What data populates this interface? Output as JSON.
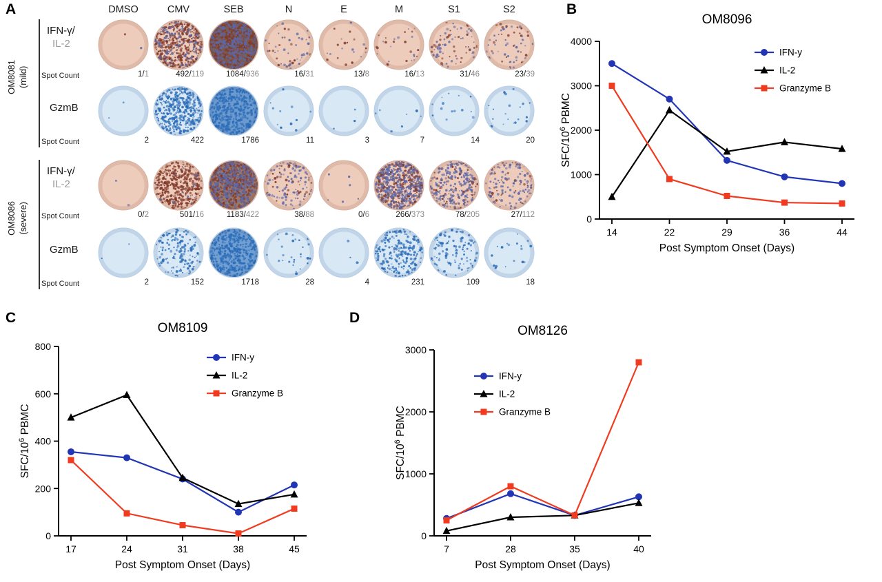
{
  "panelA": {
    "label": "A",
    "columns": [
      "DMSO",
      "CMV",
      "SEB",
      "N",
      "E",
      "M",
      "S1",
      "S2"
    ],
    "spot_count_label": "Spot Count",
    "groups": [
      {
        "patient": "OM8081",
        "severity": "(mild)",
        "rows": [
          {
            "type": "dual",
            "label1": "IFN-γ/",
            "label2": "IL-2",
            "well": "pink",
            "counts": [
              [
                "1",
                "1"
              ],
              [
                "492",
                "119"
              ],
              [
                "1084",
                "936"
              ],
              [
                "16",
                "31"
              ],
              [
                "13",
                "8"
              ],
              [
                "16",
                "13"
              ],
              [
                "31",
                "46"
              ],
              [
                "23",
                "39"
              ]
            ]
          },
          {
            "type": "single",
            "label1": "GzmB",
            "well": "blue",
            "counts": [
              "2",
              "422",
              "1786",
              "11",
              "3",
              "7",
              "14",
              "20"
            ]
          }
        ]
      },
      {
        "patient": "OM8086",
        "severity": "(severe)",
        "rows": [
          {
            "type": "dual",
            "label1": "IFN-γ/",
            "label2": "IL-2",
            "well": "pink",
            "counts": [
              [
                "0",
                "2"
              ],
              [
                "501",
                "16"
              ],
              [
                "1183",
                "422"
              ],
              [
                "38",
                "88"
              ],
              [
                "0",
                "6"
              ],
              [
                "266",
                "373"
              ],
              [
                "78",
                "205"
              ],
              [
                "27",
                "112"
              ]
            ]
          },
          {
            "type": "single",
            "label1": "GzmB",
            "well": "blue",
            "counts": [
              "2",
              "152",
              "1718",
              "28",
              "4",
              "231",
              "109",
              "18"
            ]
          }
        ]
      }
    ],
    "well_colors": {
      "pink_base": "#eeccbc",
      "pink_spot_primary": "#81392a",
      "pink_spot_secondary": "#5b68a8",
      "pink_dense_overlay": "#4a2418",
      "blue_base": "#d9e8f5",
      "blue_spot": "#2a6cb8",
      "blue_dense_overlay": "#1e62b4"
    }
  },
  "chart_data": [
    {
      "id": "B",
      "type": "line",
      "title": "OM8096",
      "x_tick_labels": [
        "14",
        "22",
        "29",
        "36",
        "44"
      ],
      "xlabel": "Post Symptom Onset (Days)",
      "ylabel": "SFC/10^6 PBMC",
      "ylim": [
        0,
        4000
      ],
      "yticks": [
        0,
        1000,
        2000,
        3000,
        4000
      ],
      "legend_pos": "top-right",
      "series": [
        {
          "name": "IFN-y",
          "marker": "circle",
          "color": "#2236b5",
          "values": [
            3500,
            2700,
            1320,
            950,
            800
          ]
        },
        {
          "name": "IL-2",
          "marker": "triangle",
          "color": "#000000",
          "values": [
            500,
            2450,
            1520,
            1730,
            1580
          ]
        },
        {
          "name": "Granzyme B",
          "marker": "square",
          "color": "#f03b20",
          "values": [
            3000,
            900,
            520,
            370,
            350
          ]
        }
      ]
    },
    {
      "id": "C",
      "type": "line",
      "title": "OM8109",
      "x_tick_labels": [
        "17",
        "24",
        "31",
        "38",
        "45"
      ],
      "xlabel": "Post Symptom Onset (Days)",
      "ylabel": "SFC/10^6 PBMC",
      "ylim": [
        0,
        800
      ],
      "yticks": [
        0,
        200,
        400,
        600,
        800
      ],
      "legend_pos": "top-right",
      "series": [
        {
          "name": "IFN-y",
          "marker": "circle",
          "color": "#2236b5",
          "values": [
            355,
            330,
            240,
            100,
            215
          ]
        },
        {
          "name": "IL-2",
          "marker": "triangle",
          "color": "#000000",
          "values": [
            500,
            595,
            245,
            135,
            175
          ]
        },
        {
          "name": "Granzyme B",
          "marker": "square",
          "color": "#f03b20",
          "values": [
            320,
            95,
            45,
            10,
            115
          ]
        }
      ]
    },
    {
      "id": "D",
      "type": "line",
      "title": "OM8126",
      "x_tick_labels": [
        "7",
        "28",
        "35",
        "40"
      ],
      "xlabel": "Post Symptom Onset (Days)",
      "ylabel": "SFC/10^6 PBMC",
      "ylim": [
        0,
        3000
      ],
      "yticks": [
        0,
        1000,
        2000,
        3000
      ],
      "legend_pos": "center-left",
      "series": [
        {
          "name": "IFN-y",
          "marker": "circle",
          "color": "#2236b5",
          "values": [
            280,
            680,
            330,
            630
          ]
        },
        {
          "name": "IL-2",
          "marker": "triangle",
          "color": "#000000",
          "values": [
            80,
            300,
            330,
            530
          ]
        },
        {
          "name": "Granzyme B",
          "marker": "square",
          "color": "#f03b20",
          "values": [
            250,
            800,
            330,
            2800
          ]
        }
      ]
    }
  ]
}
